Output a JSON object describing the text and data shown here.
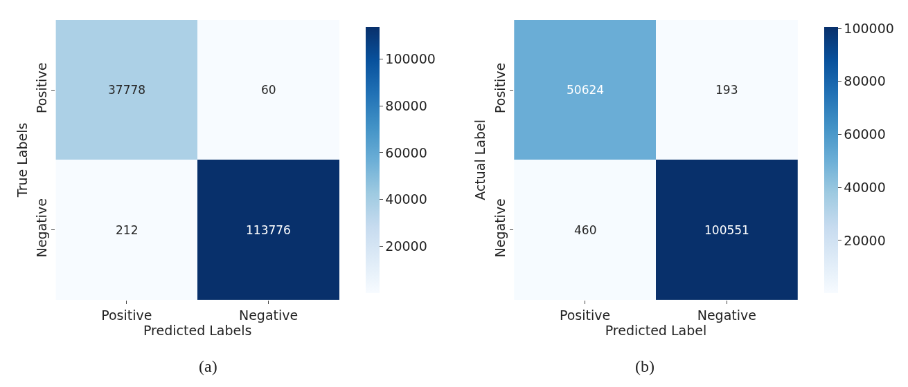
{
  "chart_data": [
    {
      "type": "heatmap",
      "categories": [
        "Positive",
        "Negative"
      ],
      "y_categories": [
        "Positive",
        "Negative"
      ],
      "cells": [
        [
          37778,
          60
        ],
        [
          212,
          113776
        ]
      ],
      "data_labels": true,
      "xlabel": "Predicted Labels",
      "ylabel": "True Labels",
      "clim": [
        60,
        113776
      ],
      "cticks": [
        20000,
        40000,
        60000,
        80000,
        100000
      ],
      "annotations": [
        "(a)"
      ]
    },
    {
      "type": "heatmap",
      "categories": [
        "Positive",
        "Negative"
      ],
      "y_categories": [
        "Positive",
        "Negative"
      ],
      "cells": [
        [
          50624,
          193
        ],
        [
          460,
          100551
        ]
      ],
      "data_labels": true,
      "xlabel": "Predicted Label",
      "ylabel": "Actual Label",
      "clim": [
        193,
        100551
      ],
      "cticks": [
        20000,
        40000,
        60000,
        80000,
        100000
      ],
      "annotations": [
        "(b)"
      ]
    }
  ]
}
